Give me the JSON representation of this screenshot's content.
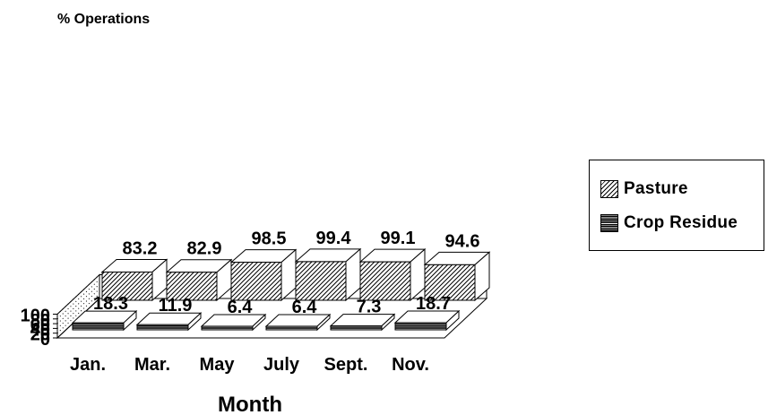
{
  "chart_data": {
    "type": "bar",
    "ylabel": "% Operations",
    "xlabel": "Month",
    "categories": [
      "Jan.",
      "Mar.",
      "May",
      "July",
      "Sept.",
      "Nov."
    ],
    "yticks": [
      0,
      20,
      40,
      60,
      80,
      100
    ],
    "ylim": [
      0,
      100
    ],
    "series": [
      {
        "name": "Pasture",
        "values": [
          83.2,
          82.9,
          98.5,
          99.4,
          99.1,
          94.6
        ],
        "labels": [
          "83.2",
          "82.9",
          "98.5",
          "99.4",
          "99.1",
          "94.6"
        ]
      },
      {
        "name": "Crop Residue",
        "values": [
          18.3,
          11.9,
          6.4,
          6.4,
          7.3,
          18.7
        ],
        "labels": [
          "18.3",
          "11.9",
          "6.4",
          "6.4",
          "7.3",
          "18.7"
        ]
      }
    ],
    "legend_position": "right",
    "style": "3d"
  }
}
